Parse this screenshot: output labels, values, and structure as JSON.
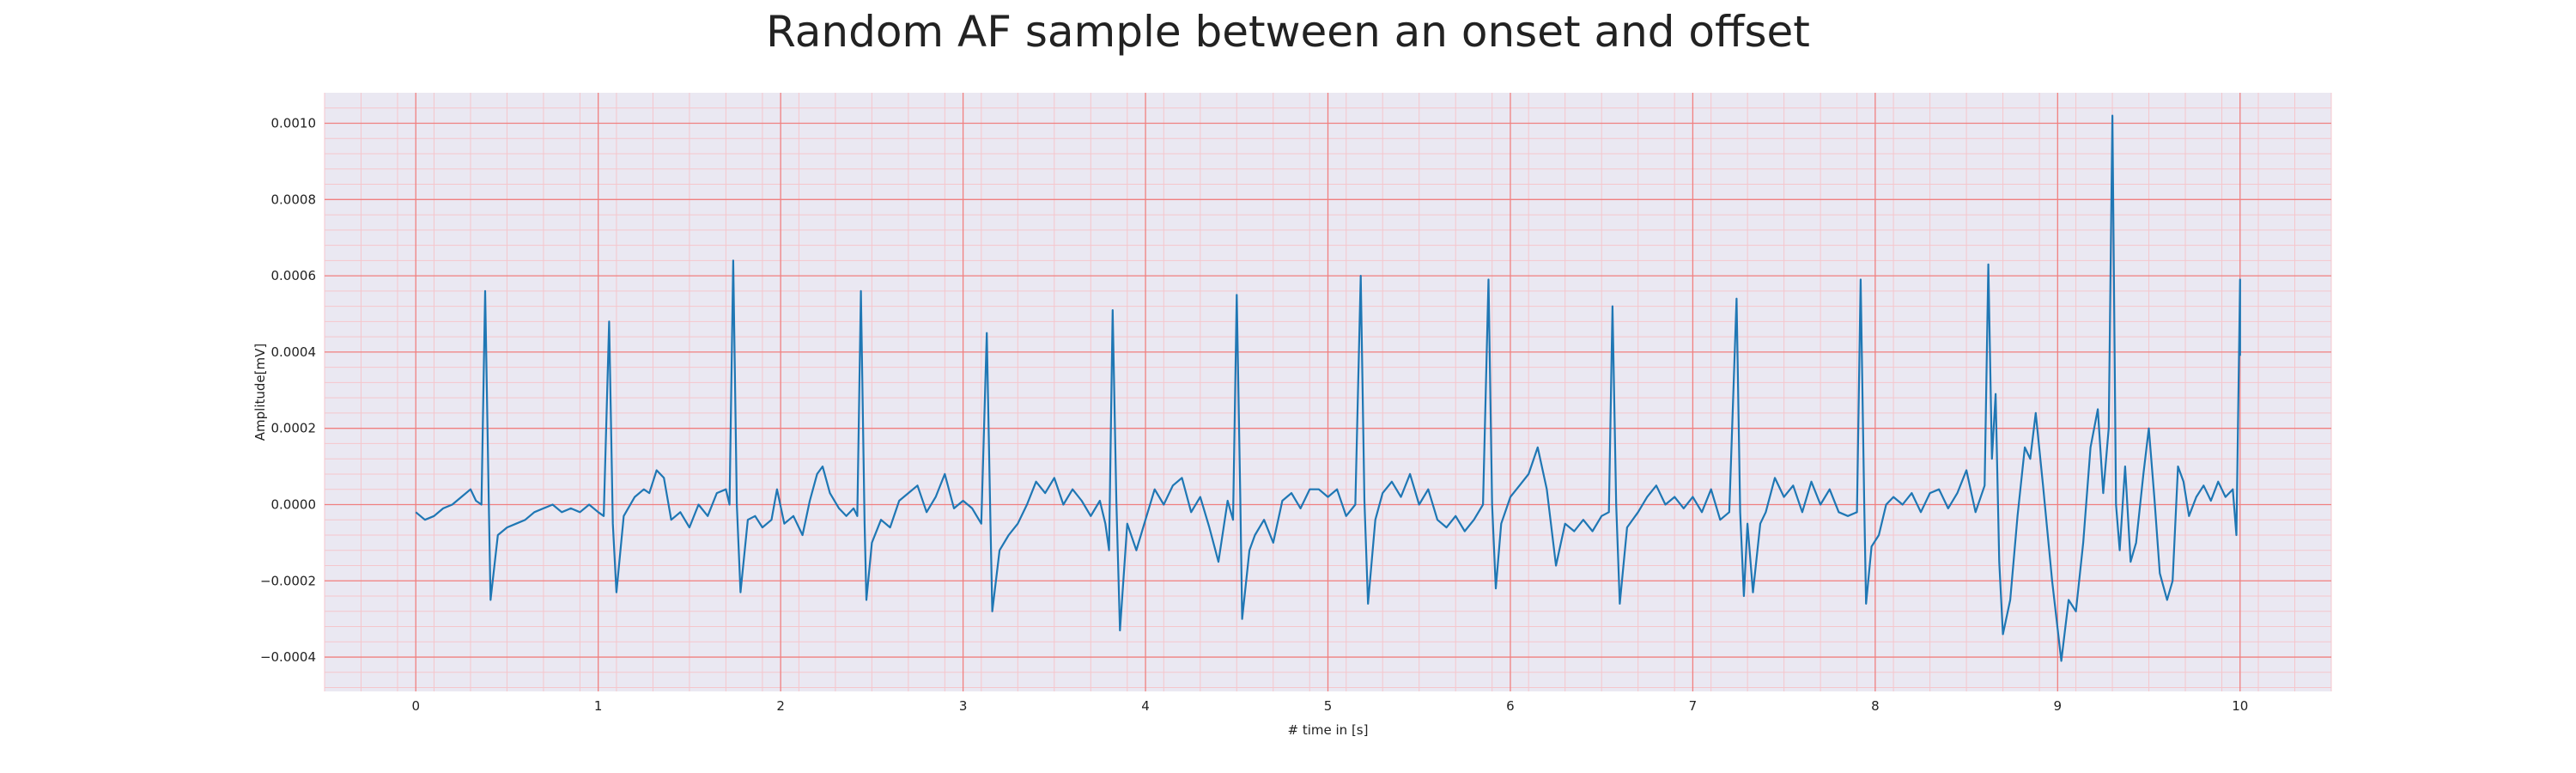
{
  "chart_data": {
    "type": "line",
    "title": "Random AF sample between an onset and offset",
    "xlabel": "# time in [s]",
    "ylabel": "Amplitude[mV]",
    "xlim": [
      -0.5,
      10.5
    ],
    "ylim": [
      -0.00049,
      0.00108
    ],
    "grid": true,
    "minor_grid": true,
    "x_ticks": [
      0,
      1,
      2,
      3,
      4,
      5,
      6,
      7,
      8,
      9,
      10
    ],
    "x_tick_labels": [
      "0",
      "1",
      "2",
      "3",
      "4",
      "5",
      "6",
      "7",
      "8",
      "9",
      "10"
    ],
    "y_ticks": [
      -0.0004,
      -0.0002,
      0.0,
      0.0002,
      0.0004,
      0.0006,
      0.0008,
      0.001
    ],
    "y_tick_labels": [
      "−0.0004",
      "−0.0002",
      "0.0000",
      "0.0002",
      "0.0004",
      "0.0006",
      "0.0008",
      "0.0010"
    ],
    "colors": {
      "line": "#1f77b4",
      "plot_background": "#eae8f2",
      "major_grid": "#f08080",
      "minor_grid": "#f5c6cc"
    },
    "series": [
      {
        "values": [
          [
            0.0,
            -2e-05
          ],
          [
            0.05,
            -4e-05
          ],
          [
            0.1,
            -3e-05
          ],
          [
            0.15,
            -1e-05
          ],
          [
            0.2,
            0.0
          ],
          [
            0.25,
            2e-05
          ],
          [
            0.3,
            4e-05
          ],
          [
            0.33,
            1e-05
          ],
          [
            0.36,
            0.0
          ],
          [
            0.38,
            0.00056
          ],
          [
            0.4,
            1e-05
          ],
          [
            0.41,
            -0.00025
          ],
          [
            0.45,
            -8e-05
          ],
          [
            0.5,
            -6e-05
          ],
          [
            0.55,
            -5e-05
          ],
          [
            0.6,
            -4e-05
          ],
          [
            0.65,
            -2e-05
          ],
          [
            0.7,
            -1e-05
          ],
          [
            0.75,
            0.0
          ],
          [
            0.8,
            -2e-05
          ],
          [
            0.85,
            -1e-05
          ],
          [
            0.9,
            -2e-05
          ],
          [
            0.95,
            0.0
          ],
          [
            1.0,
            -2e-05
          ],
          [
            1.03,
            -3e-05
          ],
          [
            1.06,
            0.00048
          ],
          [
            1.08,
            -5e-05
          ],
          [
            1.1,
            -0.00023
          ],
          [
            1.14,
            -3e-05
          ],
          [
            1.2,
            2e-05
          ],
          [
            1.25,
            4e-05
          ],
          [
            1.28,
            3e-05
          ],
          [
            1.32,
            9e-05
          ],
          [
            1.36,
            7e-05
          ],
          [
            1.4,
            -4e-05
          ],
          [
            1.45,
            -2e-05
          ],
          [
            1.5,
            -6e-05
          ],
          [
            1.55,
            0.0
          ],
          [
            1.6,
            -3e-05
          ],
          [
            1.65,
            3e-05
          ],
          [
            1.7,
            4e-05
          ],
          [
            1.72,
            0.0
          ],
          [
            1.74,
            0.00064
          ],
          [
            1.76,
            0.0
          ],
          [
            1.78,
            -0.00023
          ],
          [
            1.82,
            -4e-05
          ],
          [
            1.86,
            -3e-05
          ],
          [
            1.9,
            -6e-05
          ],
          [
            1.95,
            -4e-05
          ],
          [
            1.98,
            4e-05
          ],
          [
            2.02,
            -5e-05
          ],
          [
            2.07,
            -3e-05
          ],
          [
            2.12,
            -8e-05
          ],
          [
            2.16,
            1e-05
          ],
          [
            2.2,
            8e-05
          ],
          [
            2.23,
            0.0001
          ],
          [
            2.27,
            3e-05
          ],
          [
            2.32,
            -1e-05
          ],
          [
            2.36,
            -3e-05
          ],
          [
            2.4,
            -1e-05
          ],
          [
            2.42,
            -3e-05
          ],
          [
            2.44,
            0.00056
          ],
          [
            2.46,
            -5e-05
          ],
          [
            2.47,
            -0.00025
          ],
          [
            2.5,
            -0.0001
          ],
          [
            2.55,
            -4e-05
          ],
          [
            2.6,
            -6e-05
          ],
          [
            2.65,
            1e-05
          ],
          [
            2.7,
            3e-05
          ],
          [
            2.75,
            5e-05
          ],
          [
            2.8,
            -2e-05
          ],
          [
            2.85,
            2e-05
          ],
          [
            2.9,
            8e-05
          ],
          [
            2.95,
            -1e-05
          ],
          [
            3.0,
            1e-05
          ],
          [
            3.05,
            -1e-05
          ],
          [
            3.1,
            -5e-05
          ],
          [
            3.13,
            0.00045
          ],
          [
            3.15,
            -5e-05
          ],
          [
            3.16,
            -0.00028
          ],
          [
            3.2,
            -0.00012
          ],
          [
            3.25,
            -8e-05
          ],
          [
            3.3,
            -5e-05
          ],
          [
            3.35,
            0.0
          ],
          [
            3.4,
            6e-05
          ],
          [
            3.45,
            3e-05
          ],
          [
            3.5,
            7e-05
          ],
          [
            3.55,
            0.0
          ],
          [
            3.6,
            4e-05
          ],
          [
            3.65,
            1e-05
          ],
          [
            3.7,
            -3e-05
          ],
          [
            3.75,
            1e-05
          ],
          [
            3.78,
            -5e-05
          ],
          [
            3.8,
            -0.00012
          ],
          [
            3.82,
            0.00051
          ],
          [
            3.84,
            1e-05
          ],
          [
            3.86,
            -0.00033
          ],
          [
            3.9,
            -5e-05
          ],
          [
            3.95,
            -0.00012
          ],
          [
            4.0,
            -4e-05
          ],
          [
            4.05,
            4e-05
          ],
          [
            4.1,
            0.0
          ],
          [
            4.15,
            5e-05
          ],
          [
            4.2,
            7e-05
          ],
          [
            4.25,
            -2e-05
          ],
          [
            4.3,
            2e-05
          ],
          [
            4.35,
            -6e-05
          ],
          [
            4.4,
            -0.00015
          ],
          [
            4.45,
            1e-05
          ],
          [
            4.48,
            -4e-05
          ],
          [
            4.5,
            0.00055
          ],
          [
            4.52,
            1e-05
          ],
          [
            4.53,
            -0.0003
          ],
          [
            4.57,
            -0.00012
          ],
          [
            4.6,
            -8e-05
          ],
          [
            4.65,
            -4e-05
          ],
          [
            4.7,
            -0.0001
          ],
          [
            4.75,
            1e-05
          ],
          [
            4.8,
            3e-05
          ],
          [
            4.85,
            -1e-05
          ],
          [
            4.9,
            4e-05
          ],
          [
            4.95,
            4e-05
          ],
          [
            5.0,
            2e-05
          ],
          [
            5.05,
            4e-05
          ],
          [
            5.1,
            -3e-05
          ],
          [
            5.15,
            0.0
          ],
          [
            5.18,
            0.0006
          ],
          [
            5.2,
            1e-05
          ],
          [
            5.22,
            -0.00026
          ],
          [
            5.26,
            -4e-05
          ],
          [
            5.3,
            3e-05
          ],
          [
            5.35,
            6e-05
          ],
          [
            5.4,
            2e-05
          ],
          [
            5.45,
            8e-05
          ],
          [
            5.5,
            0.0
          ],
          [
            5.55,
            4e-05
          ],
          [
            5.6,
            -4e-05
          ],
          [
            5.65,
            -6e-05
          ],
          [
            5.7,
            -3e-05
          ],
          [
            5.75,
            -7e-05
          ],
          [
            5.8,
            -4e-05
          ],
          [
            5.85,
            0.0
          ],
          [
            5.88,
            0.00059
          ],
          [
            5.9,
            0.0
          ],
          [
            5.92,
            -0.00022
          ],
          [
            5.95,
            -5e-05
          ],
          [
            6.0,
            2e-05
          ],
          [
            6.05,
            5e-05
          ],
          [
            6.1,
            8e-05
          ],
          [
            6.15,
            0.00015
          ],
          [
            6.2,
            4e-05
          ],
          [
            6.25,
            -0.00016
          ],
          [
            6.3,
            -5e-05
          ],
          [
            6.35,
            -7e-05
          ],
          [
            6.4,
            -4e-05
          ],
          [
            6.45,
            -7e-05
          ],
          [
            6.5,
            -3e-05
          ],
          [
            6.54,
            -2e-05
          ],
          [
            6.56,
            0.00052
          ],
          [
            6.58,
            0.0
          ],
          [
            6.6,
            -0.00026
          ],
          [
            6.64,
            -6e-05
          ],
          [
            6.7,
            -2e-05
          ],
          [
            6.75,
            2e-05
          ],
          [
            6.8,
            5e-05
          ],
          [
            6.85,
            0.0
          ],
          [
            6.9,
            2e-05
          ],
          [
            6.95,
            -1e-05
          ],
          [
            7.0,
            2e-05
          ],
          [
            7.05,
            -2e-05
          ],
          [
            7.1,
            4e-05
          ],
          [
            7.15,
            -4e-05
          ],
          [
            7.2,
            -2e-05
          ],
          [
            7.24,
            0.00054
          ],
          [
            7.26,
            -2e-05
          ],
          [
            7.28,
            -0.00024
          ],
          [
            7.3,
            -5e-05
          ],
          [
            7.33,
            -0.00023
          ],
          [
            7.37,
            -5e-05
          ],
          [
            7.4,
            -2e-05
          ],
          [
            7.45,
            7e-05
          ],
          [
            7.5,
            2e-05
          ],
          [
            7.55,
            5e-05
          ],
          [
            7.6,
            -2e-05
          ],
          [
            7.65,
            6e-05
          ],
          [
            7.7,
            0.0
          ],
          [
            7.75,
            4e-05
          ],
          [
            7.8,
            -2e-05
          ],
          [
            7.85,
            -3e-05
          ],
          [
            7.9,
            -2e-05
          ],
          [
            7.92,
            0.00059
          ],
          [
            7.94,
            0.0
          ],
          [
            7.95,
            -0.00026
          ],
          [
            7.98,
            -0.00011
          ],
          [
            8.02,
            -8e-05
          ],
          [
            8.06,
            0.0
          ],
          [
            8.1,
            2e-05
          ],
          [
            8.15,
            0.0
          ],
          [
            8.2,
            3e-05
          ],
          [
            8.25,
            -2e-05
          ],
          [
            8.3,
            3e-05
          ],
          [
            8.35,
            4e-05
          ],
          [
            8.4,
            -1e-05
          ],
          [
            8.45,
            3e-05
          ],
          [
            8.5,
            9e-05
          ],
          [
            8.55,
            -2e-05
          ],
          [
            8.6,
            5e-05
          ],
          [
            8.62,
            0.00063
          ],
          [
            8.64,
            0.00012
          ],
          [
            8.66,
            0.00029
          ],
          [
            8.68,
            -0.00015
          ],
          [
            8.7,
            -0.00034
          ],
          [
            8.74,
            -0.00025
          ],
          [
            8.78,
            -3e-05
          ],
          [
            8.82,
            0.00015
          ],
          [
            8.85,
            0.00012
          ],
          [
            8.88,
            0.00024
          ],
          [
            8.92,
            5e-05
          ],
          [
            8.97,
            -0.0002
          ],
          [
            9.02,
            -0.00041
          ],
          [
            9.06,
            -0.00025
          ],
          [
            9.1,
            -0.00028
          ],
          [
            9.14,
            -0.0001
          ],
          [
            9.18,
            0.00015
          ],
          [
            9.22,
            0.00025
          ],
          [
            9.25,
            3e-05
          ],
          [
            9.28,
            0.0002
          ],
          [
            9.3,
            0.00102
          ],
          [
            9.32,
            0.0
          ],
          [
            9.34,
            -0.00012
          ],
          [
            9.37,
            0.0001
          ],
          [
            9.4,
            -0.00015
          ],
          [
            9.43,
            -0.0001
          ],
          [
            9.47,
            8e-05
          ],
          [
            9.5,
            0.0002
          ],
          [
            9.53,
            2e-05
          ],
          [
            9.56,
            -0.00018
          ],
          [
            9.6,
            -0.00025
          ],
          [
            9.63,
            -0.0002
          ],
          [
            9.66,
            0.0001
          ],
          [
            9.69,
            6e-05
          ],
          [
            9.72,
            -3e-05
          ],
          [
            9.76,
            2e-05
          ],
          [
            9.8,
            5e-05
          ],
          [
            9.84,
            1e-05
          ],
          [
            9.88,
            6e-05
          ],
          [
            9.92,
            2e-05
          ],
          [
            9.96,
            4e-05
          ],
          [
            9.98,
            -8e-05
          ],
          [
            10.0,
            0.00059
          ],
          [
            10.0,
            0.00039
          ]
        ]
      }
    ]
  }
}
